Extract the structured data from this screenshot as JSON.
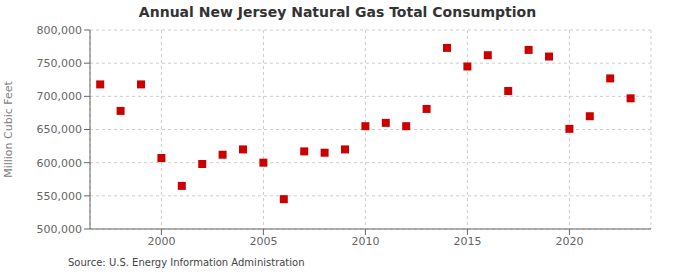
{
  "chart_data": {
    "type": "scatter",
    "title": "Annual New Jersey Natural Gas Total Consumption",
    "ylabel": "Million Cubic Feet",
    "annotations": [
      "Source: U.S. Energy Information Administration"
    ],
    "x": [
      1997,
      1998,
      1999,
      2000,
      2001,
      2002,
      2003,
      2004,
      2005,
      2006,
      2007,
      2008,
      2009,
      2010,
      2011,
      2012,
      2013,
      2014,
      2015,
      2016,
      2017,
      2018,
      2019,
      2020,
      2021,
      2022,
      2023
    ],
    "values": [
      718000,
      678000,
      718000,
      607000,
      565000,
      598000,
      612000,
      620000,
      600000,
      545000,
      617000,
      615000,
      620000,
      655000,
      660000,
      655000,
      681000,
      773000,
      745000,
      762000,
      708000,
      770000,
      760000,
      651000,
      670000,
      727000,
      697000
    ],
    "color": "#cc0000",
    "marker": "square",
    "xlim": [
      1996.5,
      2024
    ],
    "xticks": [
      2000,
      2005,
      2010,
      2015,
      2020
    ],
    "ylim": [
      500000,
      800000
    ],
    "yticks": [
      {
        "value": 500000,
        "label": "500,000"
      },
      {
        "value": 550000,
        "label": "550,000"
      },
      {
        "value": 600000,
        "label": "600,000"
      },
      {
        "value": 650000,
        "label": "650,000"
      },
      {
        "value": 700000,
        "label": "700,000"
      },
      {
        "value": 750000,
        "label": "750,000"
      },
      {
        "value": 800000,
        "label": "800,000"
      }
    ],
    "grid": true
  }
}
